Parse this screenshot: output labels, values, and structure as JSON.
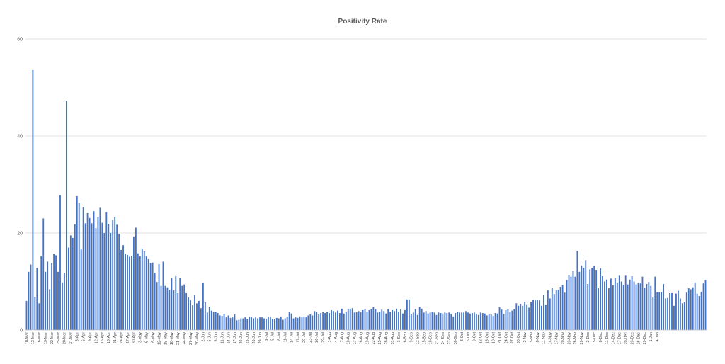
{
  "chart_data": {
    "type": "bar",
    "title": "Positivity Rate",
    "xlabel": "",
    "ylabel": "",
    "ylim": [
      0,
      60
    ],
    "yticks": [
      0,
      20,
      40,
      60
    ],
    "grid": true,
    "legend": "none",
    "bar_color": "#4472c4",
    "start_date": "10-Mar",
    "x_tick_labels": [
      "10-Mar",
      "13-Mar",
      "16-Mar",
      "19-Mar",
      "22-Mar",
      "25-Mar",
      "28-Mar",
      "31-Mar",
      "3-Apr",
      "6-Apr",
      "9-Apr",
      "12-Apr",
      "15-Apr",
      "18-Apr",
      "21-Apr",
      "24-Apr",
      "27-Apr",
      "30-Apr",
      "3-May",
      "6-May",
      "9-May",
      "12-May",
      "15-May",
      "18-May",
      "21-May",
      "24-May",
      "27-May",
      "30-May",
      "2-Jun",
      "5-Jun",
      "8-Jun",
      "11-Jun",
      "14-Jun",
      "17-Jun",
      "20-Jun",
      "23-Jun",
      "26-Jun",
      "29-Jun",
      "2-Jul",
      "5-Jul",
      "8-Jul",
      "11-Jul",
      "14-Jul",
      "17-Jul",
      "20-Jul",
      "23-Jul",
      "26-Jul",
      "29-Jul",
      "1-Aug",
      "4-Aug",
      "7-Aug",
      "10-Aug",
      "13-Aug",
      "16-Aug",
      "19-Aug",
      "22-Aug",
      "25-Aug",
      "28-Aug",
      "31-Aug",
      "3-Sep",
      "6-Sep",
      "9-Sep",
      "12-Sep",
      "15-Sep",
      "18-Sep",
      "21-Sep",
      "24-Sep",
      "27-Sep",
      "30-Sep",
      "3-Oct",
      "6-Oct",
      "9-Oct",
      "12-Oct",
      "15-Oct",
      "18-Oct",
      "21-Oct",
      "24-Oct",
      "27-Oct",
      "30-Oct",
      "2-Nov",
      "5-Nov",
      "8-Nov",
      "11-Nov",
      "14-Nov",
      "17-Nov",
      "20-Nov",
      "23-Nov",
      "26-Nov",
      "29-Nov",
      "2-Dec",
      "5-Dec",
      "8-Dec",
      "11-Dec",
      "14-Dec",
      "17-Dec",
      "20-Dec",
      "23-Dec",
      "26-Dec",
      "29-Dec",
      "1-Jan",
      "4-Jan"
    ],
    "values": [
      6.0,
      12.0,
      13.5,
      53.6,
      6.8,
      12.8,
      5.5,
      15.2,
      23.0,
      12.0,
      14.1,
      8.4,
      13.8,
      15.7,
      15.4,
      12.0,
      27.8,
      9.8,
      11.8,
      47.2,
      17.0,
      19.5,
      19.0,
      21.8,
      27.6,
      26.2,
      16.6,
      25.4,
      22.0,
      24.1,
      23.1,
      22.0,
      24.5,
      21.0,
      23.3,
      25.2,
      22.1,
      20.0,
      24.3,
      21.9,
      20.0,
      22.7,
      23.3,
      21.7,
      19.8,
      16.5,
      17.5,
      15.7,
      15.5,
      15.1,
      15.3,
      19.3,
      21.1,
      15.8,
      15.2,
      16.8,
      16.2,
      15.2,
      14.6,
      13.8,
      13.9,
      11.8,
      9.9,
      13.6,
      9.1,
      14.1,
      9.1,
      8.8,
      8.3,
      10.7,
      8.2,
      11.1,
      7.6,
      10.8,
      9.1,
      9.4,
      7.6,
      6.7,
      6.1,
      5.1,
      7.2,
      5.5,
      6.0,
      4.5,
      9.7,
      5.7,
      3.6,
      4.8,
      4.0,
      3.8,
      3.8,
      3.5,
      3.0,
      2.9,
      3.3,
      2.6,
      3.0,
      2.5,
      2.6,
      3.2,
      2.0,
      2.1,
      2.4,
      2.4,
      2.6,
      2.3,
      2.7,
      2.6,
      2.4,
      2.6,
      2.4,
      2.6,
      2.6,
      2.4,
      2.3,
      2.7,
      2.6,
      2.3,
      2.3,
      2.5,
      2.4,
      2.7,
      2.1,
      2.4,
      2.7,
      3.8,
      3.4,
      2.4,
      2.6,
      2.5,
      2.8,
      2.6,
      2.8,
      2.6,
      3.0,
      3.2,
      3.0,
      3.9,
      3.8,
      3.3,
      3.5,
      3.7,
      3.5,
      3.8,
      3.5,
      4.1,
      3.9,
      3.6,
      4.0,
      3.5,
      4.4,
      3.4,
      3.8,
      4.4,
      4.4,
      4.5,
      3.6,
      3.7,
      3.9,
      3.7,
      4.1,
      4.4,
      3.8,
      4.1,
      4.3,
      4.8,
      4.3,
      3.6,
      3.8,
      4.2,
      3.9,
      3.4,
      4.3,
      3.8,
      4.1,
      3.9,
      4.4,
      3.8,
      4.3,
      3.4,
      4.1,
      6.3,
      6.3,
      3.2,
      3.6,
      4.3,
      3.1,
      4.7,
      4.4,
      3.6,
      3.9,
      3.4,
      3.6,
      3.8,
      3.6,
      3.1,
      3.6,
      3.5,
      3.4,
      3.6,
      3.5,
      3.6,
      3.3,
      2.8,
      3.5,
      3.8,
      3.6,
      3.6,
      3.6,
      3.9,
      3.6,
      3.4,
      3.5,
      3.6,
      3.3,
      3.1,
      3.6,
      3.5,
      3.4,
      3.0,
      3.2,
      3.2,
      2.9,
      3.5,
      3.4,
      4.7,
      4.2,
      3.3,
      4.1,
      4.3,
      3.7,
      4.0,
      4.3,
      5.5,
      5.0,
      5.4,
      5.0,
      5.8,
      5.3,
      4.6,
      5.7,
      6.2,
      6.1,
      6.2,
      6.1,
      5.0,
      7.3,
      5.2,
      8.2,
      6.5,
      8.6,
      7.4,
      8.2,
      8.3,
      8.9,
      9.3,
      7.7,
      10.3,
      11.3,
      11.0,
      12.2,
      11.0,
      16.3,
      12.0,
      13.3,
      12.8,
      14.4,
      9.5,
      12.5,
      12.8,
      13.2,
      12.4,
      8.6,
      12.7,
      11.1,
      10.0,
      10.4,
      8.6,
      10.6,
      9.2,
      10.7,
      9.8,
      11.2,
      10.0,
      9.3,
      11.2,
      9.4,
      10.4,
      11.1,
      10.0,
      9.4,
      9.7,
      9.6,
      11.0,
      8.7,
      9.5,
      9.9,
      9.1,
      6.7,
      11.0,
      7.8,
      7.8,
      7.8,
      9.5,
      6.5,
      6.6,
      7.6,
      7.6,
      5.0,
      7.5,
      8.1,
      6.5,
      5.5,
      5.7,
      7.7,
      8.6,
      8.4,
      8.8,
      9.8,
      7.5,
      7.0,
      7.9,
      9.6,
      10.3
    ]
  }
}
